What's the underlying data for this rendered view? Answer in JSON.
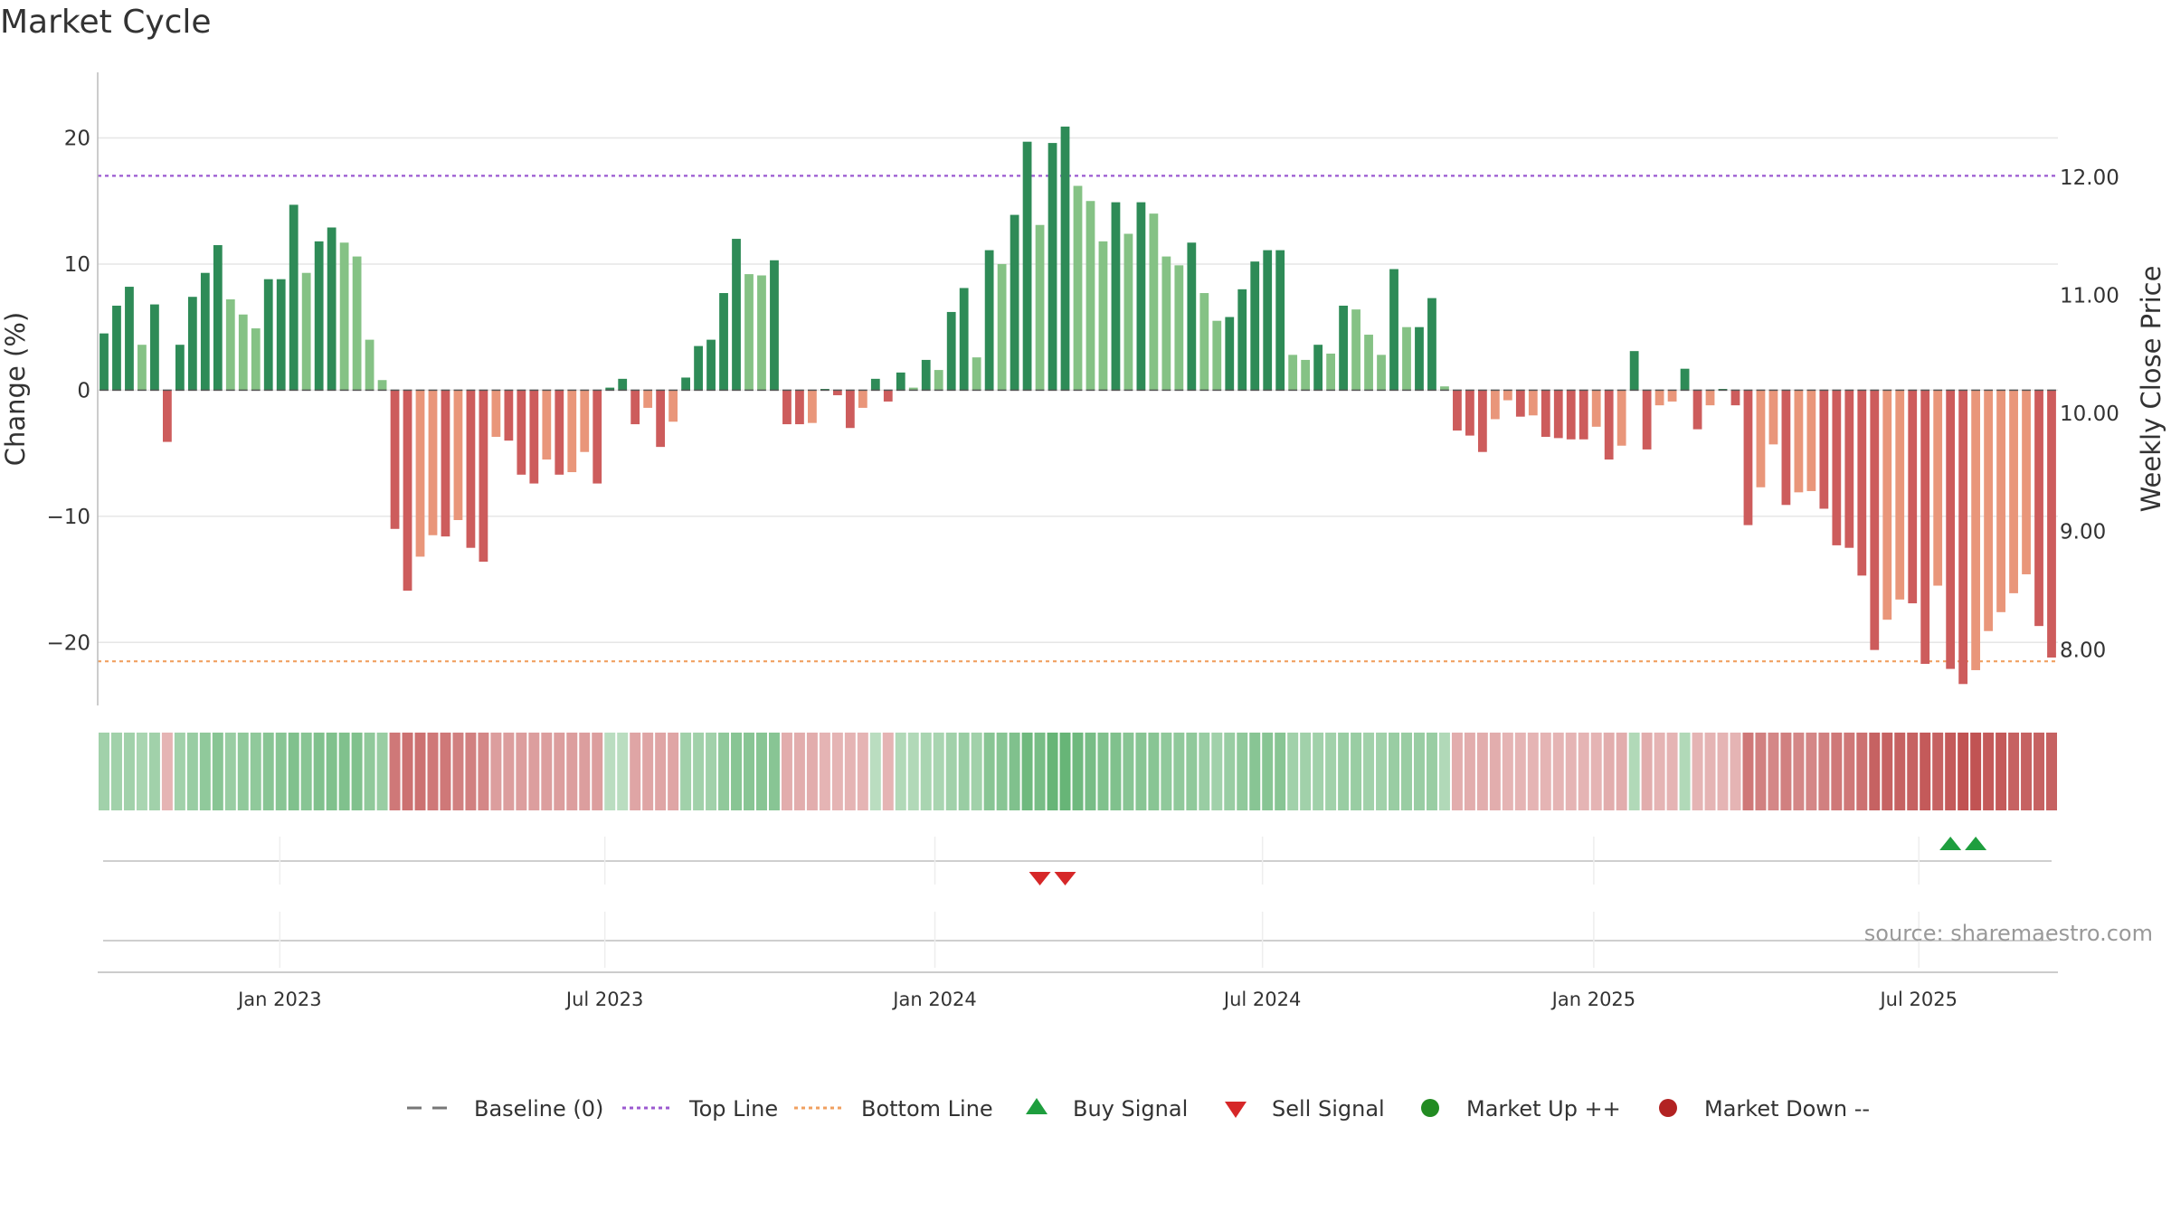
{
  "chart_data": {
    "type": "bar",
    "title": "Market Cycle",
    "ylabel_left": "Change (%)",
    "ylabel_right": "Weekly Close Price",
    "y_left_ticks": [
      "20",
      "10",
      "0",
      "−10",
      "−20"
    ],
    "y_left_tick_values": [
      20,
      10,
      0,
      -10,
      -20
    ],
    "ylim_left": [
      -25,
      25.2
    ],
    "y_right_ticks": [
      "12.00",
      "11.00",
      "10.00",
      "9.00",
      "8.00"
    ],
    "y_right_tick_values": [
      12,
      11,
      10,
      9,
      8
    ],
    "ylim_right": [
      7.52,
      12.88
    ],
    "x_ticks": [
      "Jan 2023",
      "Jul 2023",
      "Jan 2024",
      "Jul 2024",
      "Jan 2025",
      "Jul 2025"
    ],
    "x_tick_index": [
      14.4,
      40.1,
      66.2,
      92.1,
      118.3,
      144.0
    ],
    "top_line": 17.0,
    "bottom_line": -21.5,
    "grid": true,
    "changes": [
      4.5,
      6.7,
      8.2,
      3.6,
      6.8,
      -4.1,
      3.6,
      7.4,
      9.3,
      11.5,
      7.2,
      6.0,
      4.9,
      8.8,
      8.8,
      14.7,
      9.3,
      11.8,
      12.9,
      11.7,
      10.6,
      4.0,
      0.8,
      -11.0,
      -15.9,
      -13.2,
      -11.5,
      -11.6,
      -10.3,
      -12.5,
      -13.6,
      -3.7,
      -4.0,
      -6.7,
      -7.4,
      -5.5,
      -6.7,
      -6.5,
      -4.9,
      -7.4,
      0.2,
      0.9,
      -2.7,
      -1.4,
      -4.5,
      -2.5,
      1.0,
      3.5,
      4.0,
      7.7,
      12.0,
      9.2,
      9.1,
      10.3,
      -2.7,
      -2.7,
      -2.6,
      0.1,
      -0.4,
      -3.0,
      -1.4,
      0.9,
      -0.9,
      1.4,
      0.2,
      2.4,
      1.6,
      6.2,
      8.1,
      2.6,
      11.1,
      10.0,
      13.9,
      19.7,
      13.1,
      19.6,
      20.9,
      16.2,
      15.0,
      11.8,
      14.9,
      12.4,
      14.9,
      14.0,
      10.6,
      9.9,
      11.7,
      7.7,
      5.5,
      5.8,
      8.0,
      10.2,
      11.1,
      11.1,
      2.8,
      2.4,
      3.6,
      2.9,
      6.7,
      6.4,
      4.4,
      2.8,
      9.6,
      5.0,
      5.0,
      7.3,
      0.3,
      -3.2,
      -3.6,
      -4.9,
      -2.3,
      -0.8,
      -2.1,
      -2.0,
      -3.7,
      -3.8,
      -3.9,
      -3.9,
      -2.9,
      -5.5,
      -4.4,
      3.1,
      -4.7,
      -1.2,
      -0.9,
      1.7,
      -3.1,
      -1.2,
      0.1,
      -1.2,
      -10.7,
      -7.7,
      -4.3,
      -9.1,
      -8.1,
      -8.0,
      -9.4,
      -12.3,
      -12.5,
      -14.7,
      -20.6,
      -18.2,
      -16.6,
      -16.9,
      -21.7,
      -15.5,
      -22.1,
      -23.3,
      -22.2,
      -19.1,
      -17.6,
      -16.1,
      -14.6,
      -18.7,
      -21.2
    ],
    "band_intensity": [
      0.45,
      0.45,
      0.45,
      0.4,
      0.45,
      -0.3,
      0.45,
      0.5,
      0.55,
      0.6,
      0.5,
      0.55,
      0.55,
      0.6,
      0.6,
      0.65,
      0.6,
      0.65,
      0.65,
      0.65,
      0.65,
      0.55,
      0.5,
      -0.7,
      -0.75,
      -0.75,
      -0.7,
      -0.7,
      -0.65,
      -0.65,
      -0.6,
      -0.45,
      -0.45,
      -0.45,
      -0.45,
      -0.45,
      -0.45,
      -0.45,
      -0.45,
      -0.45,
      0.3,
      0.3,
      -0.4,
      -0.4,
      -0.4,
      -0.4,
      0.45,
      0.45,
      0.45,
      0.55,
      0.6,
      0.6,
      0.6,
      0.6,
      -0.35,
      -0.35,
      -0.35,
      -0.3,
      -0.3,
      -0.3,
      -0.3,
      0.3,
      -0.3,
      0.35,
      0.35,
      0.4,
      0.4,
      0.45,
      0.5,
      0.45,
      0.6,
      0.6,
      0.65,
      0.75,
      0.7,
      0.8,
      0.8,
      0.75,
      0.7,
      0.65,
      0.65,
      0.6,
      0.6,
      0.6,
      0.55,
      0.55,
      0.55,
      0.5,
      0.45,
      0.5,
      0.55,
      0.6,
      0.6,
      0.6,
      0.45,
      0.45,
      0.45,
      0.45,
      0.5,
      0.5,
      0.45,
      0.45,
      0.5,
      0.5,
      0.5,
      0.5,
      0.35,
      -0.35,
      -0.35,
      -0.35,
      -0.35,
      -0.3,
      -0.3,
      -0.3,
      -0.3,
      -0.3,
      -0.3,
      -0.3,
      -0.3,
      -0.35,
      -0.35,
      0.35,
      -0.35,
      -0.3,
      -0.3,
      0.35,
      -0.3,
      -0.3,
      -0.3,
      -0.3,
      -0.7,
      -0.65,
      -0.6,
      -0.65,
      -0.6,
      -0.6,
      -0.65,
      -0.7,
      -0.7,
      -0.75,
      -0.85,
      -0.85,
      -0.85,
      -0.85,
      -0.9,
      -0.85,
      -0.9,
      -0.95,
      -0.95,
      -0.9,
      -0.9,
      -0.85,
      -0.85,
      -0.85,
      -0.85
    ],
    "buy_signals": [
      146,
      148
    ],
    "sell_signals": [
      74,
      76
    ],
    "x_grid_index": [
      14.4,
      40.1,
      66.2,
      92.1,
      118.3,
      144.0
    ],
    "legend_placement": "bottom",
    "legend": [
      {
        "label": "Baseline (0)",
        "symbol": "dash",
        "color": "#777777"
      },
      {
        "label": "Top Line",
        "symbol": "dot",
        "color": "#9b59d0"
      },
      {
        "label": "Bottom Line",
        "symbol": "dot",
        "color": "#f0a060"
      },
      {
        "label": "Buy Signal",
        "symbol": "triangle-up",
        "color": "#1e9e3e"
      },
      {
        "label": "Sell Signal",
        "symbol": "triangle-down",
        "color": "#d62728"
      },
      {
        "label": "Market Up ++",
        "symbol": "circle",
        "color": "#228b22"
      },
      {
        "label": "Market Down --",
        "symbol": "circle",
        "color": "#b22222"
      }
    ],
    "source": "source: sharemaestro.com"
  },
  "colors": {
    "up_dark": "#2e8b57",
    "up_light": "#85c285",
    "down_dark": "#cd5c5c",
    "down_light": "#e9967a",
    "top_line": "#9b59d0",
    "bottom_line": "#f0a060",
    "buy": "#1e9e3e",
    "sell": "#d62728"
  }
}
